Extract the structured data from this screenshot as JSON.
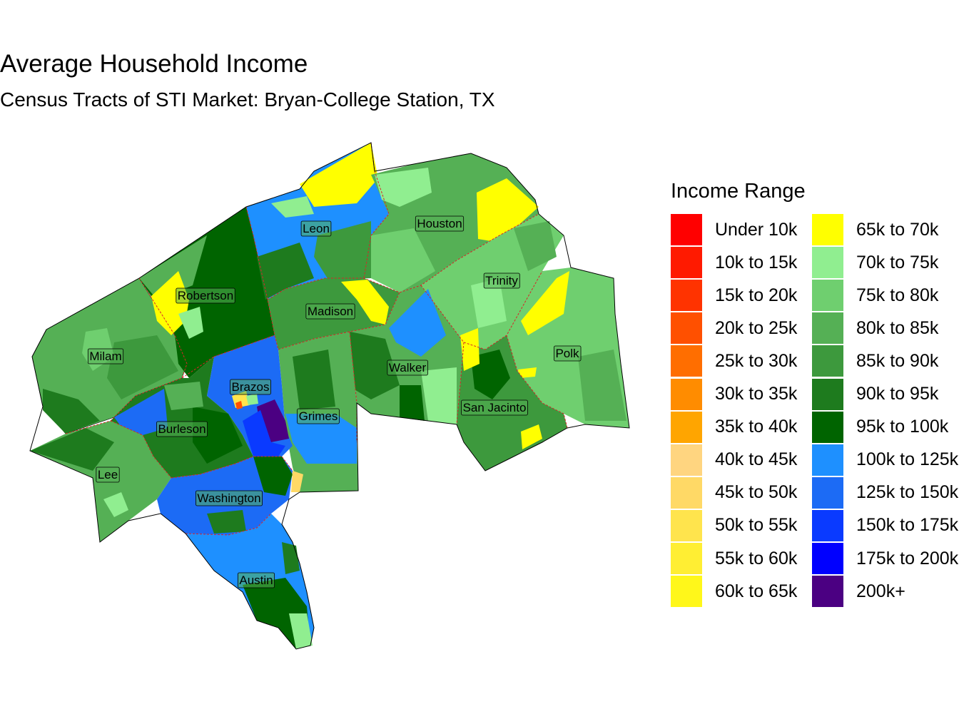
{
  "title": "Average Household Income",
  "subtitle": "Census Tracts of STI Market: Bryan-College Station, TX",
  "legend": {
    "title": "Income Range",
    "items": [
      {
        "label": "Under 10k",
        "color": "#FF0000"
      },
      {
        "label": "10k to 15k",
        "color": "#FF1A00"
      },
      {
        "label": "15k to 20k",
        "color": "#FF3300"
      },
      {
        "label": "20k to 25k",
        "color": "#FF5000"
      },
      {
        "label": "25k to 30k",
        "color": "#FF6E00"
      },
      {
        "label": "30k to 35k",
        "color": "#FF8C00"
      },
      {
        "label": "35k to 40k",
        "color": "#FFA500"
      },
      {
        "label": "40k to 45k",
        "color": "#FFD580"
      },
      {
        "label": "45k to 50k",
        "color": "#FFD966"
      },
      {
        "label": "50k to 55k",
        "color": "#FFE44D"
      },
      {
        "label": "55k to 60k",
        "color": "#FFEE33"
      },
      {
        "label": "60k to 65k",
        "color": "#FFF71A"
      },
      {
        "label": "65k to 70k",
        "color": "#FFFF00"
      },
      {
        "label": "70k to 75k",
        "color": "#90EE90"
      },
      {
        "label": "75k to 80k",
        "color": "#6FCF6F"
      },
      {
        "label": "80k to 85k",
        "color": "#55B055"
      },
      {
        "label": "85k to 90k",
        "color": "#3D993D"
      },
      {
        "label": "90k to 95k",
        "color": "#1E7B1E"
      },
      {
        "label": "95k to 100k",
        "color": "#006400"
      },
      {
        "label": "100k to 125k",
        "color": "#1E90FF"
      },
      {
        "label": "125k to 150k",
        "color": "#1C6BF5"
      },
      {
        "label": "150k to 175k",
        "color": "#0A3AFF"
      },
      {
        "label": "175k to 200k",
        "color": "#0000FF"
      },
      {
        "label": "200k+",
        "color": "#4B0082"
      }
    ]
  },
  "counties": [
    {
      "name": "Leon"
    },
    {
      "name": "Houston"
    },
    {
      "name": "Trinity"
    },
    {
      "name": "Robertson"
    },
    {
      "name": "Madison"
    },
    {
      "name": "Milam"
    },
    {
      "name": "Polk"
    },
    {
      "name": "Walker"
    },
    {
      "name": "Brazos"
    },
    {
      "name": "Grimes"
    },
    {
      "name": "San Jacinto"
    },
    {
      "name": "Burleson"
    },
    {
      "name": "Lee"
    },
    {
      "name": "Washington"
    },
    {
      "name": "Austin"
    }
  ],
  "colors": {
    "county_border": "#D62728",
    "outline": "#000000",
    "label_box": "#55B055"
  }
}
